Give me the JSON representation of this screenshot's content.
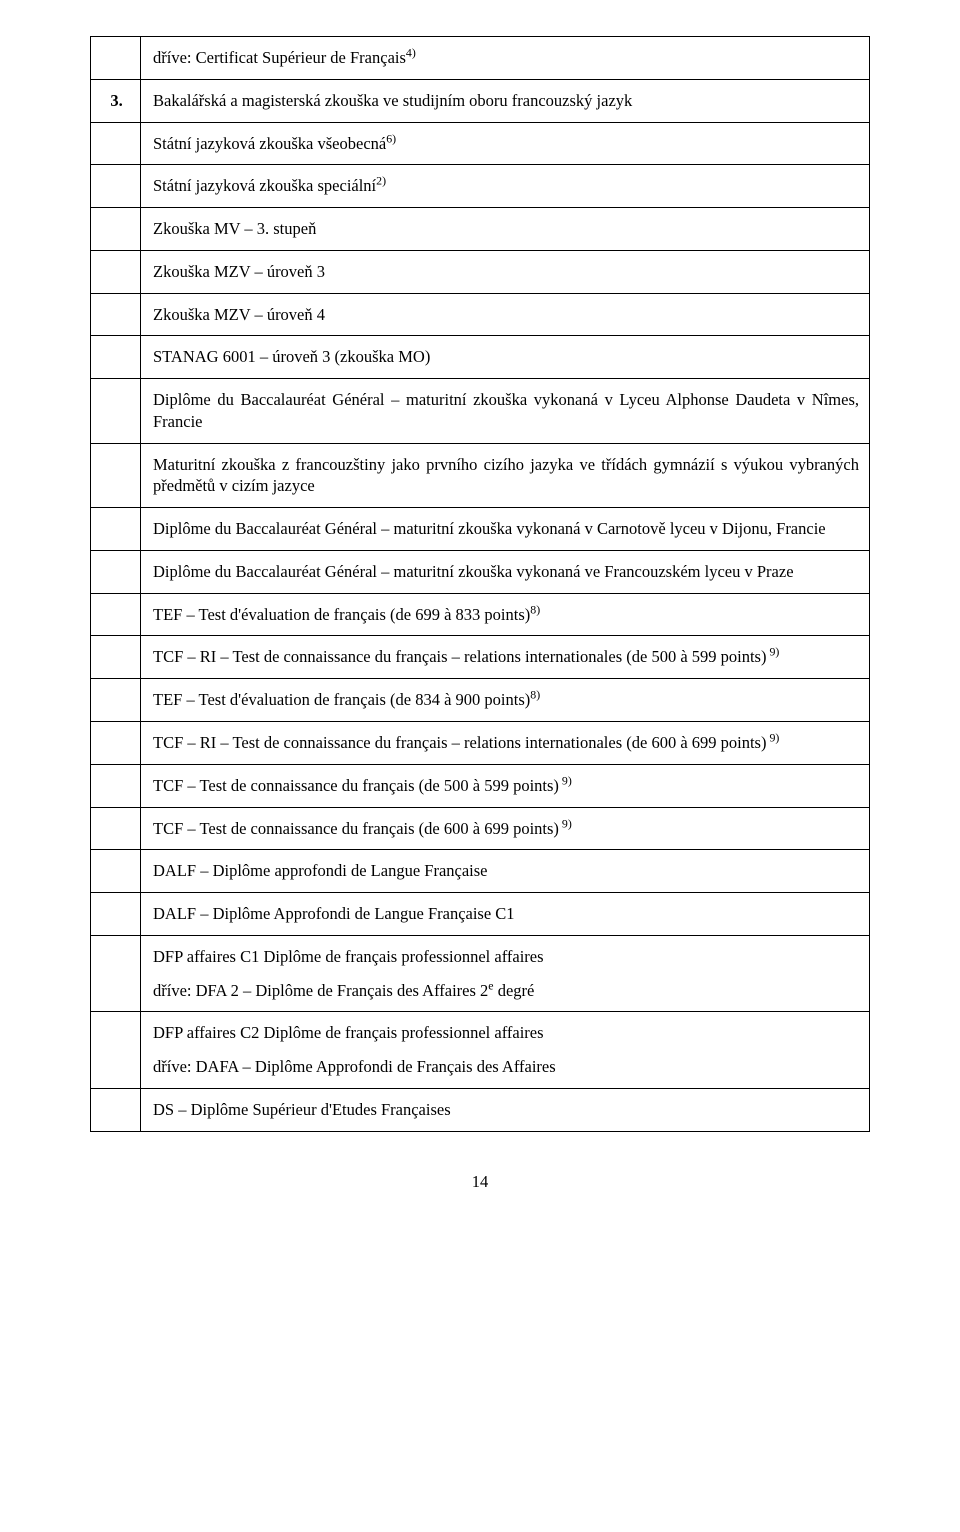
{
  "rows": {
    "r1a": "dříve: Certificat Supérieur de Français",
    "r1a_sup": "4)",
    "r2_num": "3.",
    "r2": "Bakalářská a magisterská zkouška ve studijním oboru francouzský jazyk",
    "r3": "Státní jazyková zkouška všeobecná",
    "r3_sup": "6)",
    "r4": "Státní jazyková zkouška speciální",
    "r4_sup": "2)",
    "r5": "Zkouška MV – 3. stupeň",
    "r6": "Zkouška MZV – úroveň 3",
    "r7": "Zkouška MZV – úroveň 4",
    "r8": "STANAG 6001 – úroveň 3 (zkouška MO)",
    "r9": "Diplôme du Baccalauréat Général – maturitní zkouška vykonaná v Lyceu Alphonse Daudeta v Nîmes, Francie",
    "r10": "Maturitní zkouška z francouzštiny jako prvního cizího jazyka ve třídách gymnázií s výukou vybraných předmětů v cizím jazyce",
    "r11": "Diplôme du Baccalauréat Général – maturitní zkouška vykonaná v Carnotově lyceu v Dijonu, Francie",
    "r12": "Diplôme du Baccalauréat Général – maturitní zkouška vykonaná ve Francouzském lyceu v Praze",
    "r13": "TEF – Test d'évaluation de français (de 699 à 833 points)",
    "r13_sup": "8)",
    "r14": "TCF – RI – Test de connaissance du français – relations internationales  (de 500 à 599 points)",
    "r14_sup": " 9)",
    "r15": "TEF – Test d'évaluation de français (de 834 à 900 points)",
    "r15_sup": "8)",
    "r16": "TCF – RI –  Test de connaissance du français – relations internationales (de 600 à 699 points)",
    "r16_sup": " 9)",
    "r17": "TCF –  Test de connaissance du français  (de  500 à 599 points)",
    "r17_sup": " 9)",
    "r18": "TCF –  Test de connaissance du français  (de  600 à 699 points)",
    "r18_sup": " 9)",
    "r19": "DALF – Diplôme approfondi de Langue Française",
    "r20": "DALF – Diplôme Approfondi de Langue Française C1",
    "r21a": "DFP affaires C1 Diplôme de français professionnel affaires",
    "r21b_pre": "dříve: DFA 2 – Diplôme de Français des Affaires 2",
    "r21b_sup": "e",
    "r21b_post": " degré",
    "r22a": "DFP affaires C2 Diplôme de français professionnel affaires",
    "r22b": "dříve: DAFA – Diplôme Approfondi de Français des Affaires",
    "r23": "DS – Diplôme Supérieur d'Etudes Françaises"
  },
  "page_number": "14"
}
